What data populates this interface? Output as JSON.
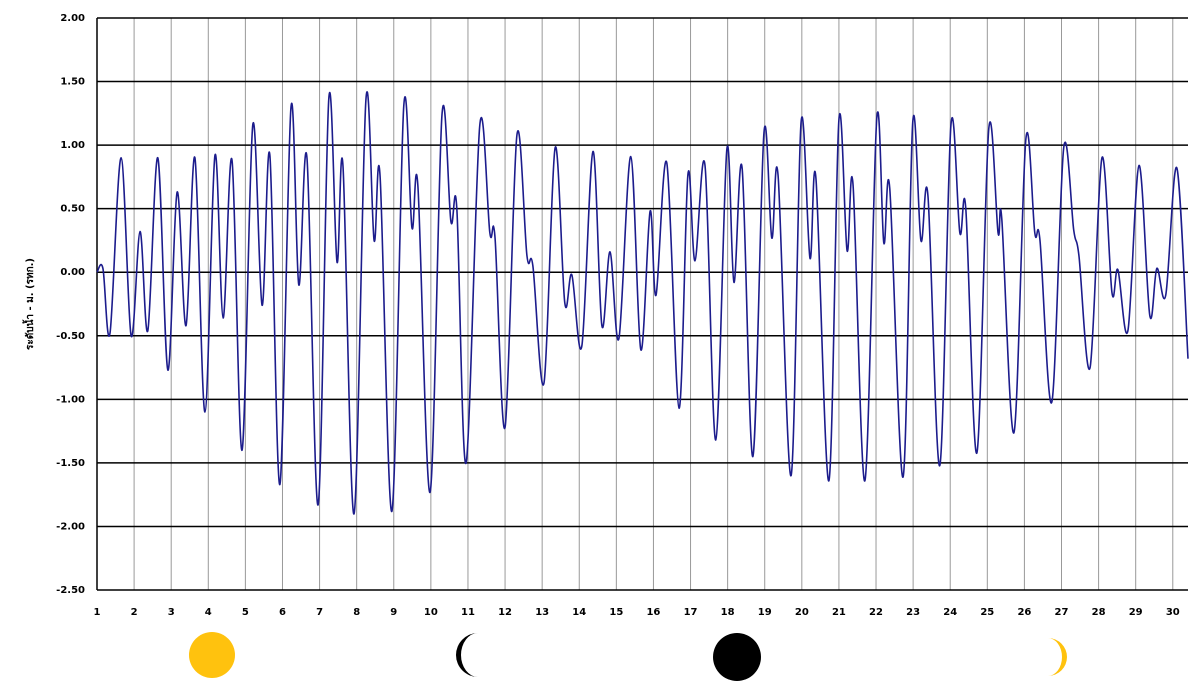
{
  "chart_data": {
    "type": "line",
    "ylabel": "ระดับน้ำ - ม. (รทก.)",
    "xlim": [
      1,
      30.41
    ],
    "xticks": [
      1,
      2,
      3,
      4,
      5,
      6,
      7,
      8,
      9,
      10,
      11,
      12,
      13,
      14,
      15,
      16,
      17,
      18,
      19,
      20,
      21,
      22,
      23,
      24,
      25,
      26,
      27,
      28,
      29,
      30
    ],
    "ylim": [
      -2.5,
      2.0
    ],
    "yticks": [
      {
        "value": -2.5,
        "label": "-2.50"
      },
      {
        "value": -2.0,
        "label": "-2.00"
      },
      {
        "value": -1.5,
        "label": "-1.50"
      },
      {
        "value": -1.0,
        "label": "-1.00"
      },
      {
        "value": -0.5,
        "label": "-0.50"
      },
      {
        "value": 0,
        "label": "0.00"
      },
      {
        "value": 0.5,
        "label": "0.50"
      },
      {
        "value": 1.0,
        "label": "1.00"
      },
      {
        "value": 1.5,
        "label": "1.50"
      },
      {
        "value": 2.0,
        "label": "2.00"
      }
    ],
    "grid": true,
    "series": [
      {
        "color": "#1c1c8c",
        "x": [
          1.0,
          1.16,
          1.35,
          1.65,
          1.92,
          2.16,
          2.37,
          2.64,
          2.91,
          3.16,
          3.4,
          3.64,
          3.91,
          4.18,
          4.4,
          4.64,
          4.91,
          5.2,
          5.45,
          5.66,
          5.93,
          6.23,
          6.44,
          6.66,
          6.96,
          7.25,
          7.47,
          7.63,
          7.93,
          8.25,
          8.47,
          8.63,
          8.95,
          9.27,
          9.49,
          9.65,
          9.98,
          10.3,
          10.54,
          10.7,
          10.95,
          11.32,
          11.59,
          11.73,
          12.0,
          12.32,
          12.59,
          12.75,
          13.05,
          13.35,
          13.61,
          13.8,
          14.07,
          14.37,
          14.61,
          14.83,
          15.07,
          15.39,
          15.66,
          15.91,
          16.07,
          16.36,
          16.69,
          16.93,
          17.12,
          17.39,
          17.68,
          17.98,
          18.17,
          18.39,
          18.68,
          18.98,
          19.19,
          19.36,
          19.71,
          19.98,
          20.22,
          20.38,
          20.73,
          21.0,
          21.22,
          21.38,
          21.7,
          22.02,
          22.21,
          22.37,
          22.73,
          22.99,
          23.21,
          23.4,
          23.72,
          24.02,
          24.26,
          24.42,
          24.72,
          25.04,
          25.29,
          25.39,
          25.72,
          26.04,
          26.28,
          26.42,
          26.74,
          27.06,
          27.33,
          27.47,
          27.77,
          28.09,
          28.36,
          28.52,
          28.79,
          29.09,
          29.38,
          29.57,
          29.81,
          30.11,
          30.41
        ],
        "values": [
          0.0,
          0.03,
          -0.48,
          0.9,
          -0.5,
          0.32,
          -0.46,
          0.9,
          -0.77,
          0.63,
          -0.42,
          0.9,
          -1.1,
          0.92,
          -0.36,
          0.88,
          -1.4,
          1.16,
          -0.26,
          0.92,
          -1.67,
          1.3,
          -0.1,
          0.9,
          -1.83,
          1.37,
          0.08,
          0.84,
          -1.9,
          1.36,
          0.25,
          0.76,
          -1.88,
          1.31,
          0.35,
          0.68,
          -1.73,
          1.24,
          0.4,
          0.5,
          -1.5,
          1.16,
          0.31,
          0.27,
          -1.22,
          1.08,
          0.13,
          0.05,
          -0.87,
          0.98,
          -0.24,
          -0.02,
          -0.58,
          0.95,
          -0.42,
          0.16,
          -0.52,
          0.91,
          -0.61,
          0.48,
          -0.18,
          0.86,
          -1.07,
          0.77,
          0.09,
          0.84,
          -1.32,
          0.97,
          -0.08,
          0.82,
          -1.45,
          1.1,
          0.27,
          0.76,
          -1.6,
          1.18,
          0.11,
          0.74,
          -1.64,
          1.2,
          0.17,
          0.69,
          -1.64,
          1.21,
          0.23,
          0.66,
          -1.61,
          1.18,
          0.25,
          0.6,
          -1.52,
          1.16,
          0.31,
          0.5,
          -1.42,
          1.13,
          0.31,
          0.42,
          -1.26,
          1.05,
          0.31,
          0.25,
          -1.02,
          0.98,
          0.33,
          0.13,
          -0.75,
          0.9,
          -0.16,
          0.02,
          -0.46,
          0.84,
          -0.34,
          0.03,
          -0.18,
          0.82,
          -0.68
        ]
      }
    ]
  }
}
